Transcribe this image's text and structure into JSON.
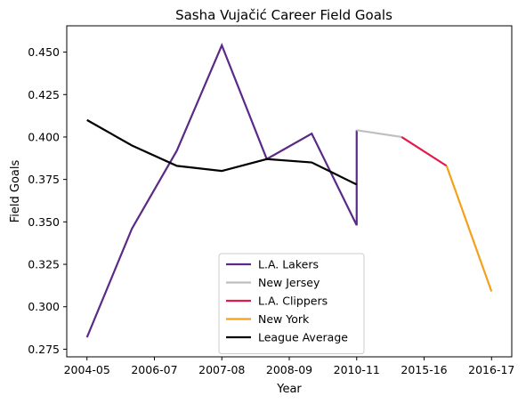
{
  "chart_data": {
    "type": "line",
    "title": "Sasha Vujačić Career Field Goals",
    "xlabel": "Year",
    "ylabel": "Field Goals",
    "x_tick_labels": [
      "2004-05",
      "2006-07",
      "2007-08",
      "2008-09",
      "2010-11",
      "2015-16",
      "2016-17"
    ],
    "ylim": [
      0.2705,
      0.4655
    ],
    "y_ticks": [
      0.275,
      0.3,
      0.325,
      0.35,
      0.375,
      0.4,
      0.425,
      0.45
    ],
    "y_tick_labels": [
      "0.275",
      "0.300",
      "0.325",
      "0.350",
      "0.375",
      "0.400",
      "0.425",
      "0.450"
    ],
    "legend_position": "lower center",
    "grid": false,
    "series": [
      {
        "name": "L.A. Lakers",
        "color": "#5b2a86",
        "points": [
          [
            0,
            0.282
          ],
          [
            0.5,
            0.346
          ],
          [
            1,
            0.392
          ],
          [
            1.5,
            0.454
          ],
          [
            2,
            0.387
          ],
          [
            2.5,
            0.402
          ],
          [
            3,
            0.348
          ],
          [
            3,
            0.404
          ]
        ]
      },
      {
        "name": "New Jersey",
        "color": "#bfbfbf",
        "points": [
          [
            3,
            0.404
          ],
          [
            3.5,
            0.4
          ]
        ]
      },
      {
        "name": "L.A. Clippers",
        "color": "#e3184d",
        "points": [
          [
            3.5,
            0.4
          ],
          [
            4,
            0.383
          ]
        ]
      },
      {
        "name": "New York",
        "color": "#f5a01a",
        "points": [
          [
            4,
            0.383
          ],
          [
            4.5,
            0.309
          ]
        ]
      },
      {
        "name": "League Average",
        "color": "#000000",
        "points": [
          [
            0,
            0.41
          ],
          [
            0.5,
            0.395
          ],
          [
            1,
            0.383
          ],
          [
            1.5,
            0.38
          ],
          [
            2,
            0.387
          ],
          [
            2.5,
            0.385
          ],
          [
            3,
            0.372
          ]
        ]
      }
    ]
  }
}
